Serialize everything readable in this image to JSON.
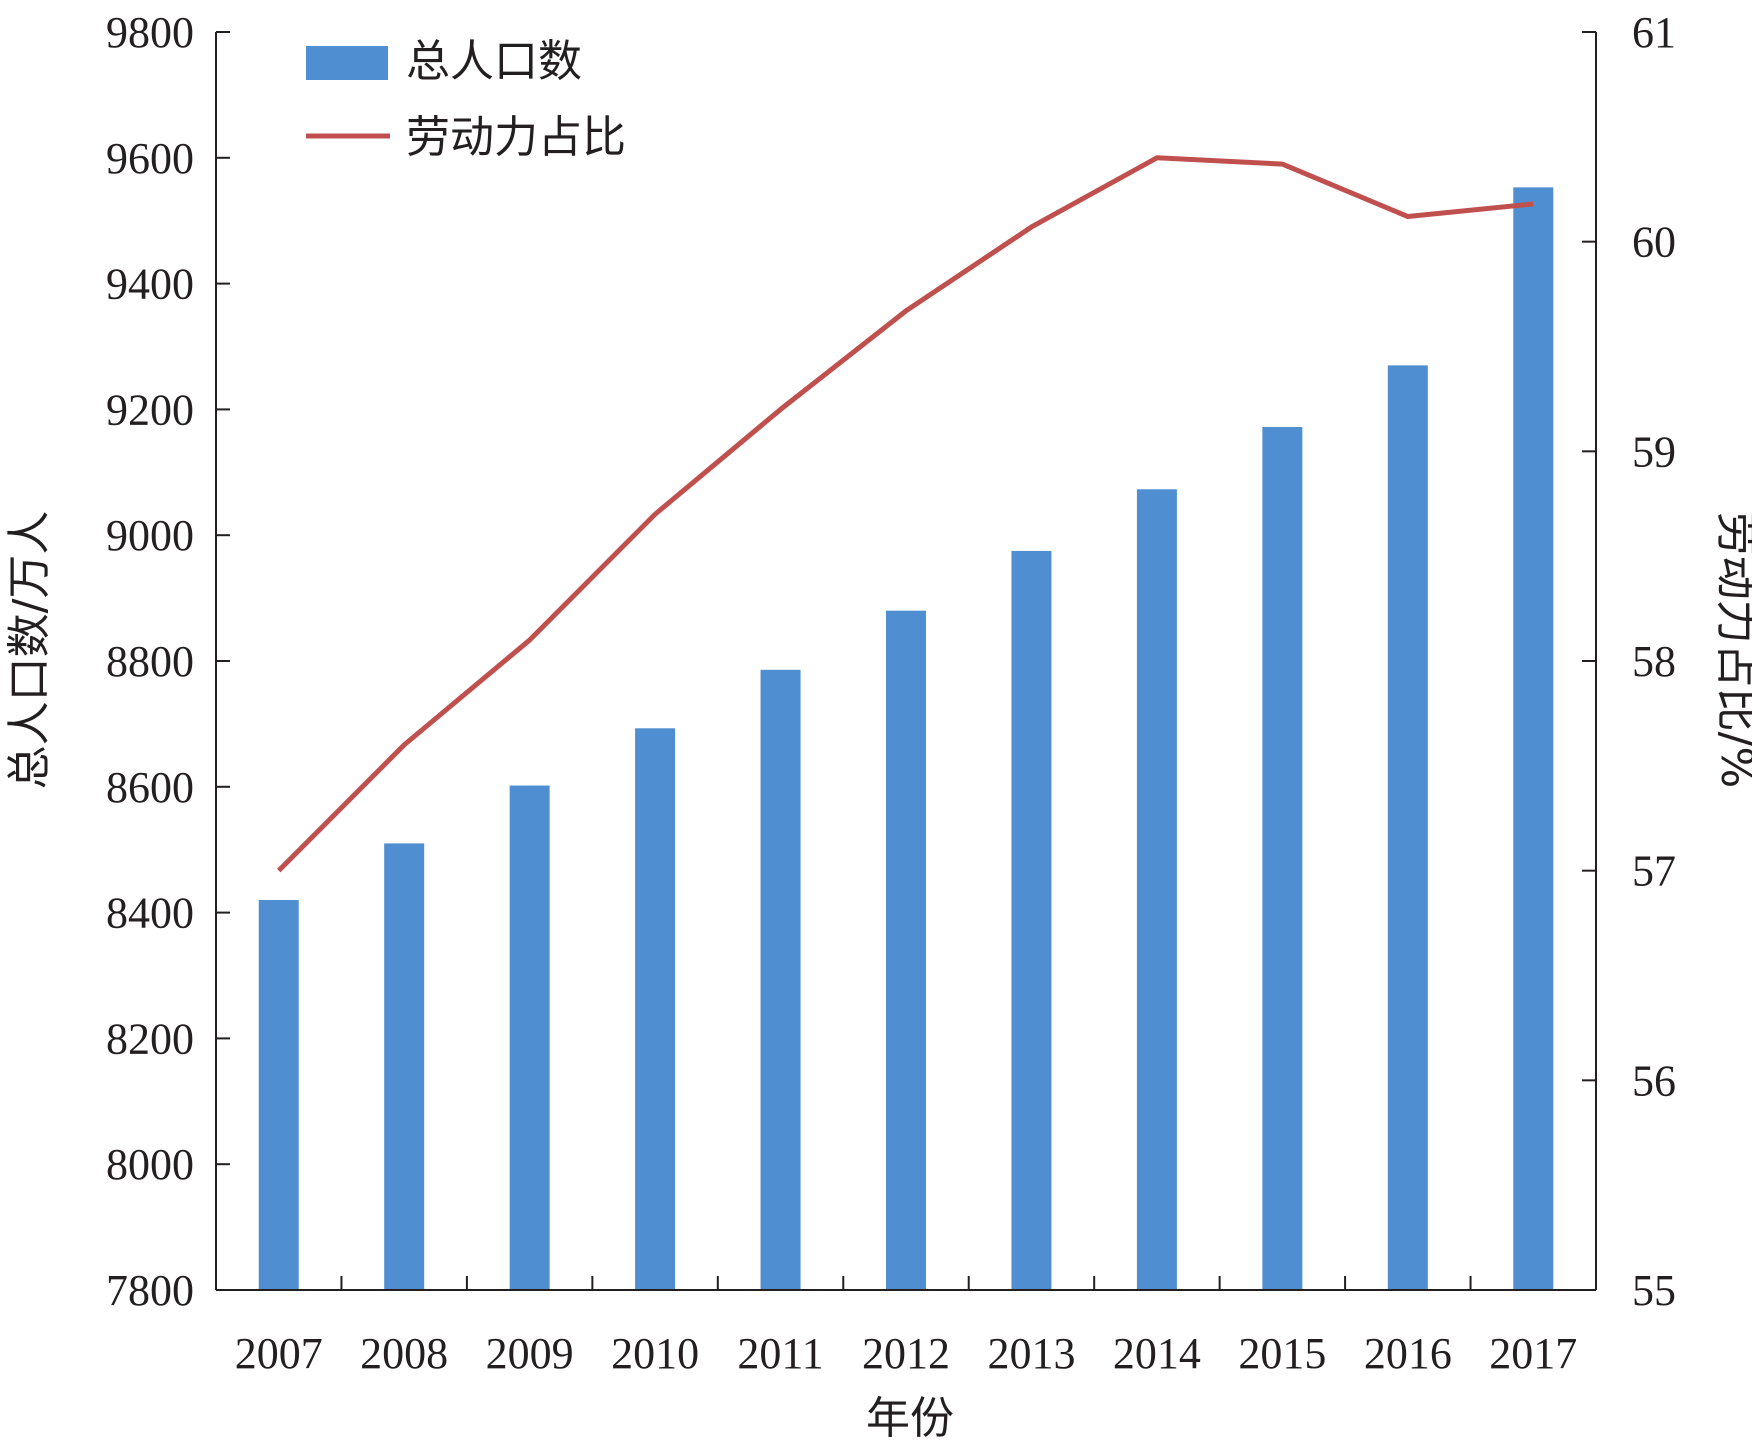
{
  "chart_data": {
    "type": "bar",
    "categories": [
      "2007",
      "2008",
      "2009",
      "2010",
      "2011",
      "2012",
      "2013",
      "2014",
      "2015",
      "2016",
      "2017"
    ],
    "series": [
      {
        "name": "总人口数",
        "type": "bar",
        "axis": "left",
        "color": "#4f8fd1",
        "values": [
          8420,
          8510,
          8602,
          8693,
          8786,
          8880,
          8975,
          9073,
          9172,
          9270,
          9553
        ]
      },
      {
        "name": "劳动力占比",
        "type": "line",
        "axis": "right",
        "color": "#c0504d",
        "values": [
          57.0,
          57.6,
          58.1,
          58.7,
          59.2,
          59.67,
          60.07,
          60.4,
          60.37,
          60.12,
          60.18
        ]
      }
    ],
    "xlabel": "年份",
    "ylabel": "总人口数/万人",
    "y2label": "劳动力占比/%",
    "ylim": [
      7800,
      9800
    ],
    "y2lim": [
      55,
      61
    ],
    "yticks": [
      "7800",
      "8000",
      "8200",
      "8400",
      "8600",
      "8800",
      "9000",
      "9200",
      "9400",
      "9600",
      "9800"
    ],
    "y2ticks": [
      "55",
      "56",
      "57",
      "58",
      "59",
      "60",
      "61"
    ],
    "legend_position": "top-left",
    "grid": false
  }
}
